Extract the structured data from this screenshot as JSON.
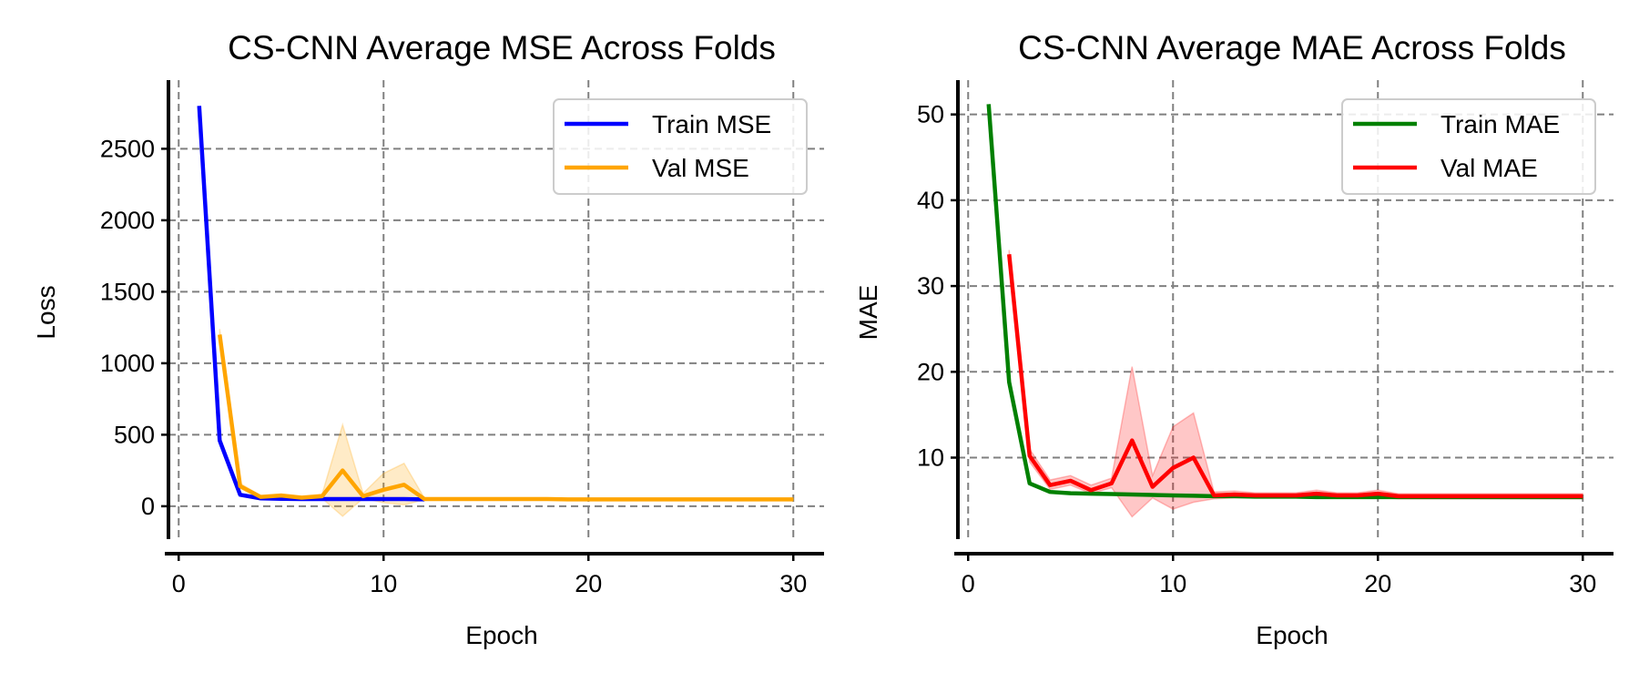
{
  "chart_data": [
    {
      "type": "line",
      "title": "CS-CNN Average MSE Across Folds",
      "xlabel": "Epoch",
      "ylabel": "Loss",
      "xlim": [
        -0.5,
        31.5
      ],
      "ylim": [
        -230,
        2980
      ],
      "xticks": [
        0,
        10,
        20,
        30
      ],
      "yticks": [
        0,
        500,
        1000,
        1500,
        2000,
        2500
      ],
      "grid": true,
      "legend_position": "upper right",
      "series": [
        {
          "name": "Train MSE",
          "color": "#0000ff",
          "x": [
            1,
            2,
            3,
            4,
            5,
            6,
            7,
            8,
            9,
            10,
            11,
            12
          ],
          "y": [
            2800,
            460,
            80,
            55,
            52,
            50,
            50,
            50,
            50,
            50,
            50,
            48
          ],
          "band": null
        },
        {
          "name": "Val MSE",
          "color": "#ffa500",
          "x": [
            2,
            3,
            4,
            5,
            6,
            7,
            8,
            9,
            10,
            11,
            12,
            13,
            14,
            15,
            16,
            17,
            18,
            19,
            20,
            21,
            22,
            23,
            24,
            25,
            26,
            27,
            28,
            29,
            30
          ],
          "y": [
            1200,
            140,
            65,
            75,
            60,
            70,
            250,
            70,
            115,
            150,
            50,
            50,
            50,
            50,
            50,
            50,
            50,
            48,
            48,
            48,
            48,
            48,
            48,
            48,
            48,
            48,
            48,
            48,
            48
          ],
          "band_lower": [
            1170,
            125,
            55,
            65,
            52,
            55,
            -70,
            55,
            25,
            10,
            45,
            45,
            45,
            45,
            45,
            45,
            45,
            44,
            44,
            44,
            44,
            44,
            44,
            44,
            44,
            44,
            44,
            44,
            44
          ],
          "band_upper": [
            1240,
            160,
            75,
            85,
            70,
            85,
            570,
            90,
            230,
            300,
            55,
            55,
            55,
            55,
            55,
            55,
            55,
            52,
            52,
            52,
            52,
            52,
            52,
            52,
            52,
            52,
            52,
            52,
            52
          ]
        }
      ]
    },
    {
      "type": "line",
      "title": "CS-CNN Average MAE Across Folds",
      "xlabel": "Epoch",
      "ylabel": "MAE",
      "xlim": [
        -0.5,
        31.5
      ],
      "ylim": [
        0.5,
        54
      ],
      "xticks": [
        0,
        10,
        20,
        30
      ],
      "yticks": [
        10,
        20,
        30,
        40,
        50
      ],
      "grid": true,
      "legend_position": "upper right",
      "series": [
        {
          "name": "Train MAE",
          "color": "#008000",
          "x": [
            1,
            2,
            3,
            4,
            5,
            6,
            7,
            8,
            9,
            10,
            11,
            12,
            13,
            14,
            15,
            16,
            17,
            18,
            19,
            20,
            21,
            22,
            23,
            24,
            25,
            26,
            27,
            28,
            29,
            30
          ],
          "y": [
            51.2,
            18.8,
            7.0,
            6.0,
            5.85,
            5.8,
            5.75,
            5.7,
            5.65,
            5.6,
            5.55,
            5.5,
            5.5,
            5.45,
            5.45,
            5.45,
            5.4,
            5.4,
            5.4,
            5.4,
            5.4,
            5.4,
            5.4,
            5.4,
            5.4,
            5.4,
            5.4,
            5.4,
            5.4,
            5.4
          ],
          "band": null
        },
        {
          "name": "Val MAE",
          "color": "#ff0000",
          "x": [
            2,
            3,
            4,
            5,
            6,
            7,
            8,
            9,
            10,
            11,
            12,
            13,
            14,
            15,
            16,
            17,
            18,
            19,
            20,
            21,
            22,
            23,
            24,
            25,
            26,
            27,
            28,
            29,
            30
          ],
          "y": [
            33.7,
            10.2,
            6.8,
            7.3,
            6.2,
            7.0,
            12.0,
            6.6,
            8.8,
            10.0,
            5.6,
            5.7,
            5.6,
            5.6,
            5.6,
            5.8,
            5.6,
            5.6,
            5.8,
            5.5,
            5.5,
            5.5,
            5.5,
            5.5,
            5.5,
            5.5,
            5.5,
            5.5,
            5.5
          ],
          "band_lower": [
            33.2,
            9.5,
            6.3,
            6.8,
            5.8,
            6.5,
            3.1,
            5.3,
            4.0,
            4.8,
            5.2,
            5.3,
            5.3,
            5.3,
            5.3,
            5.4,
            5.3,
            5.3,
            5.4,
            5.2,
            5.2,
            5.2,
            5.2,
            5.2,
            5.2,
            5.2,
            5.2,
            5.2,
            5.2
          ],
          "band_upper": [
            34.2,
            11.0,
            7.4,
            7.9,
            6.8,
            7.6,
            20.6,
            7.9,
            13.6,
            15.2,
            6.0,
            6.1,
            5.9,
            5.9,
            5.9,
            6.2,
            5.9,
            5.9,
            6.2,
            5.8,
            5.8,
            5.8,
            5.8,
            5.8,
            5.8,
            5.8,
            5.8,
            5.8,
            5.8
          ]
        }
      ]
    }
  ]
}
